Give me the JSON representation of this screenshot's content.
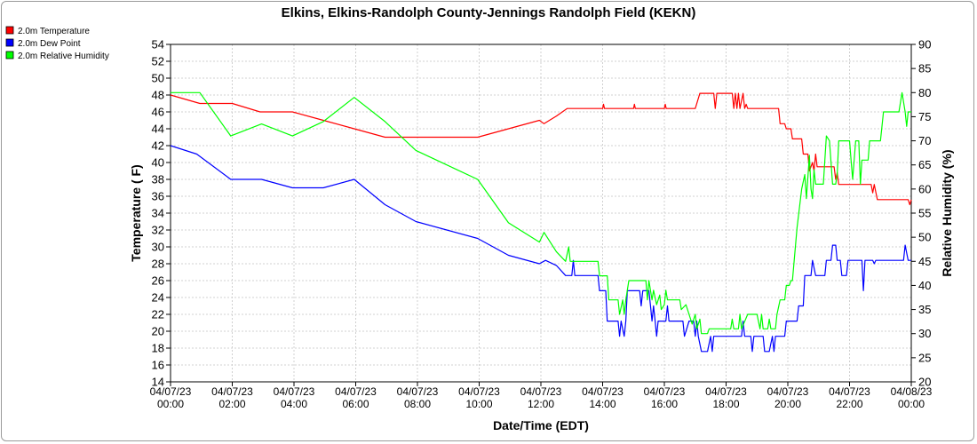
{
  "chart_data": {
    "type": "line",
    "title": "Elkins, Elkins-Randolph County-Jennings Randolph Field (KEKN)",
    "xlabel": "Date/Time (EDT)",
    "ylabel": "Temperature ( F)",
    "y2label": "Relative Humidity (%)",
    "xlim": [
      0,
      24
    ],
    "ylim": [
      14,
      54
    ],
    "y2lim": [
      20,
      90
    ],
    "yticks": [
      14,
      16,
      18,
      20,
      22,
      24,
      26,
      28,
      30,
      32,
      34,
      36,
      38,
      40,
      42,
      44,
      46,
      48,
      50,
      52,
      54
    ],
    "y2ticks": [
      20,
      25,
      30,
      35,
      40,
      45,
      50,
      55,
      60,
      65,
      70,
      75,
      80,
      85,
      90
    ],
    "xticks": [
      {
        "x": 0,
        "date": "04/07/23",
        "time": "00:00"
      },
      {
        "x": 2,
        "date": "04/07/23",
        "time": "02:00"
      },
      {
        "x": 4,
        "date": "04/07/23",
        "time": "04:00"
      },
      {
        "x": 6,
        "date": "04/07/23",
        "time": "06:00"
      },
      {
        "x": 8,
        "date": "04/07/23",
        "time": "08:00"
      },
      {
        "x": 10,
        "date": "04/07/23",
        "time": "10:00"
      },
      {
        "x": 12,
        "date": "04/07/23",
        "time": "12:00"
      },
      {
        "x": 14,
        "date": "04/07/23",
        "time": "14:00"
      },
      {
        "x": 16,
        "date": "04/07/23",
        "time": "16:00"
      },
      {
        "x": 18,
        "date": "04/07/23",
        "time": "18:00"
      },
      {
        "x": 20,
        "date": "04/07/23",
        "time": "20:00"
      },
      {
        "x": 22,
        "date": "04/07/23",
        "time": "22:00"
      },
      {
        "x": 24,
        "date": "04/08/23",
        "time": "00:00"
      }
    ],
    "grid": true,
    "legend_position": "top-left",
    "series": [
      {
        "name": "2.0m Temperature",
        "color": "#ff0000",
        "axis": "left",
        "points": [
          [
            0.0,
            48
          ],
          [
            0.95,
            47
          ],
          [
            2.0,
            47
          ],
          [
            2.9,
            46
          ],
          [
            3.95,
            46
          ],
          [
            4.95,
            45
          ],
          [
            5.95,
            44
          ],
          [
            6.95,
            43
          ],
          [
            8.0,
            43
          ],
          [
            8.95,
            43
          ],
          [
            9.95,
            43
          ],
          [
            10.95,
            44
          ],
          [
            11.95,
            45
          ],
          [
            12.1,
            44.6
          ],
          [
            12.5,
            45.5
          ],
          [
            12.85,
            46.4
          ],
          [
            14.0,
            46.4
          ],
          [
            14.03,
            46.9
          ],
          [
            14.06,
            46.4
          ],
          [
            15.0,
            46.4
          ],
          [
            15.03,
            46.9
          ],
          [
            15.06,
            46.4
          ],
          [
            16.0,
            46.4
          ],
          [
            16.03,
            46.9
          ],
          [
            16.06,
            46.4
          ],
          [
            17.0,
            46.4
          ],
          [
            17.15,
            48.2
          ],
          [
            17.6,
            48.2
          ],
          [
            17.65,
            46.4
          ],
          [
            17.7,
            48.2
          ],
          [
            18.2,
            48.2
          ],
          [
            18.25,
            46.4
          ],
          [
            18.3,
            48.2
          ],
          [
            18.35,
            46.4
          ],
          [
            18.4,
            48.2
          ],
          [
            18.45,
            46.4
          ],
          [
            18.55,
            48.2
          ],
          [
            18.6,
            46.4
          ],
          [
            18.65,
            46.9
          ],
          [
            18.7,
            46.4
          ],
          [
            19.0,
            46.4
          ],
          [
            19.5,
            46.4
          ],
          [
            19.7,
            46.4
          ],
          [
            19.75,
            44.6
          ],
          [
            19.9,
            44.6
          ],
          [
            19.95,
            44
          ],
          [
            20.1,
            44
          ],
          [
            20.15,
            42.8
          ],
          [
            20.45,
            42.8
          ],
          [
            20.5,
            41
          ],
          [
            20.65,
            41
          ],
          [
            20.7,
            39
          ],
          [
            20.8,
            40
          ],
          [
            20.85,
            39
          ],
          [
            20.9,
            41
          ],
          [
            20.95,
            39.5
          ],
          [
            21.5,
            39.5
          ],
          [
            21.55,
            38
          ],
          [
            21.6,
            38.8
          ],
          [
            21.65,
            37.4
          ],
          [
            22.7,
            37.4
          ],
          [
            22.75,
            36.4
          ],
          [
            22.8,
            37.4
          ],
          [
            22.9,
            35.6
          ],
          [
            23.9,
            35.6
          ],
          [
            23.95,
            35
          ],
          [
            24.0,
            35.6
          ]
        ]
      },
      {
        "name": "2.0m Dew Point",
        "color": "#0000ff",
        "axis": "left",
        "points": [
          [
            0.0,
            42
          ],
          [
            0.85,
            41
          ],
          [
            1.95,
            38
          ],
          [
            2.95,
            38
          ],
          [
            3.95,
            37
          ],
          [
            4.95,
            37
          ],
          [
            5.95,
            38
          ],
          [
            6.95,
            35
          ],
          [
            7.95,
            33
          ],
          [
            8.95,
            32
          ],
          [
            9.95,
            31
          ],
          [
            10.95,
            29
          ],
          [
            11.95,
            28
          ],
          [
            12.15,
            28.4
          ],
          [
            12.5,
            27.8
          ],
          [
            12.8,
            26.6
          ],
          [
            13.0,
            26.6
          ],
          [
            13.05,
            28.4
          ],
          [
            13.1,
            26.6
          ],
          [
            13.85,
            26.6
          ],
          [
            13.9,
            24.8
          ],
          [
            14.1,
            24.8
          ],
          [
            14.15,
            21.2
          ],
          [
            14.5,
            21.2
          ],
          [
            14.55,
            19.4
          ],
          [
            14.6,
            21.2
          ],
          [
            14.7,
            19.4
          ],
          [
            14.75,
            21.2
          ],
          [
            14.8,
            24.8
          ],
          [
            15.2,
            24.8
          ],
          [
            15.25,
            23
          ],
          [
            15.3,
            24.8
          ],
          [
            15.5,
            24.8
          ],
          [
            15.55,
            23
          ],
          [
            15.6,
            21.2
          ],
          [
            15.65,
            23
          ],
          [
            15.7,
            21.2
          ],
          [
            15.75,
            19.4
          ],
          [
            15.8,
            21.2
          ],
          [
            16.05,
            21.2
          ],
          [
            16.1,
            23
          ],
          [
            16.15,
            21.2
          ],
          [
            16.6,
            21.2
          ],
          [
            16.65,
            19.4
          ],
          [
            16.8,
            21.2
          ],
          [
            16.95,
            21.2
          ],
          [
            17.0,
            19.4
          ],
          [
            17.05,
            21.2
          ],
          [
            17.1,
            19.4
          ],
          [
            17.2,
            17.6
          ],
          [
            17.4,
            17.6
          ],
          [
            17.5,
            19.4
          ],
          [
            17.55,
            17.6
          ],
          [
            17.6,
            19.4
          ],
          [
            18.5,
            19.4
          ],
          [
            18.55,
            21.2
          ],
          [
            18.6,
            19.4
          ],
          [
            18.8,
            19.4
          ],
          [
            18.85,
            17.6
          ],
          [
            18.9,
            19.4
          ],
          [
            19.2,
            19.4
          ],
          [
            19.25,
            17.6
          ],
          [
            19.4,
            17.6
          ],
          [
            19.5,
            19.4
          ],
          [
            19.55,
            17.6
          ],
          [
            19.6,
            19.4
          ],
          [
            19.9,
            19.4
          ],
          [
            19.95,
            21.2
          ],
          [
            20.3,
            21.2
          ],
          [
            20.35,
            23
          ],
          [
            20.5,
            23
          ],
          [
            20.55,
            26.6
          ],
          [
            20.75,
            26.6
          ],
          [
            20.8,
            28.4
          ],
          [
            20.9,
            26.6
          ],
          [
            21.2,
            26.6
          ],
          [
            21.25,
            28.4
          ],
          [
            21.4,
            28.4
          ],
          [
            21.45,
            30.2
          ],
          [
            21.55,
            30.2
          ],
          [
            21.6,
            28.4
          ],
          [
            21.7,
            28.4
          ],
          [
            21.75,
            26.6
          ],
          [
            21.9,
            26.6
          ],
          [
            21.95,
            28.4
          ],
          [
            22.4,
            28.4
          ],
          [
            22.45,
            24.8
          ],
          [
            22.5,
            28.4
          ],
          [
            22.75,
            28.4
          ],
          [
            22.8,
            28
          ],
          [
            22.85,
            28.4
          ],
          [
            23.75,
            28.4
          ],
          [
            23.8,
            30.2
          ],
          [
            23.9,
            28.4
          ],
          [
            24.0,
            28.4
          ]
        ]
      },
      {
        "name": "2.0m Relative Humidity",
        "color": "#00ff00",
        "axis": "right",
        "points": [
          [
            0.0,
            80
          ],
          [
            0.95,
            80
          ],
          [
            1.95,
            71
          ],
          [
            2.95,
            73.5
          ],
          [
            3.95,
            71
          ],
          [
            4.95,
            74
          ],
          [
            5.95,
            79
          ],
          [
            6.95,
            74
          ],
          [
            7.95,
            68
          ],
          [
            8.95,
            65
          ],
          [
            9.95,
            62
          ],
          [
            10.95,
            53
          ],
          [
            11.95,
            49
          ],
          [
            12.1,
            51
          ],
          [
            12.5,
            47
          ],
          [
            12.8,
            45
          ],
          [
            12.9,
            48
          ],
          [
            12.95,
            45
          ],
          [
            13.85,
            45
          ],
          [
            13.9,
            42
          ],
          [
            14.15,
            42
          ],
          [
            14.2,
            37
          ],
          [
            14.5,
            37
          ],
          [
            14.55,
            34
          ],
          [
            14.65,
            37
          ],
          [
            14.7,
            34
          ],
          [
            14.75,
            37
          ],
          [
            14.85,
            41
          ],
          [
            15.4,
            41
          ],
          [
            15.45,
            37
          ],
          [
            15.5,
            41
          ],
          [
            15.6,
            37
          ],
          [
            15.65,
            39
          ],
          [
            15.75,
            36
          ],
          [
            15.85,
            38
          ],
          [
            15.9,
            35
          ],
          [
            16.0,
            36
          ],
          [
            16.05,
            39
          ],
          [
            16.1,
            37
          ],
          [
            16.5,
            37
          ],
          [
            16.55,
            35
          ],
          [
            16.7,
            36
          ],
          [
            16.8,
            34
          ],
          [
            16.9,
            32
          ],
          [
            17.0,
            34
          ],
          [
            17.05,
            31
          ],
          [
            17.15,
            33
          ],
          [
            17.2,
            30
          ],
          [
            17.4,
            30
          ],
          [
            17.45,
            31
          ],
          [
            18.15,
            31
          ],
          [
            18.2,
            33
          ],
          [
            18.25,
            31
          ],
          [
            18.4,
            31
          ],
          [
            18.45,
            34
          ],
          [
            18.5,
            31
          ],
          [
            18.7,
            34
          ],
          [
            19.0,
            34
          ],
          [
            19.1,
            31
          ],
          [
            19.15,
            34
          ],
          [
            19.2,
            31
          ],
          [
            19.35,
            31
          ],
          [
            19.4,
            33
          ],
          [
            19.45,
            31
          ],
          [
            19.6,
            31
          ],
          [
            19.65,
            34
          ],
          [
            19.75,
            37
          ],
          [
            19.9,
            37
          ],
          [
            19.95,
            40
          ],
          [
            20.05,
            40
          ],
          [
            20.1,
            41
          ],
          [
            20.15,
            41
          ],
          [
            20.3,
            52
          ],
          [
            20.45,
            60
          ],
          [
            20.55,
            63
          ],
          [
            20.6,
            58
          ],
          [
            20.7,
            67
          ],
          [
            20.75,
            60
          ],
          [
            20.8,
            58
          ],
          [
            20.85,
            64
          ],
          [
            20.9,
            61
          ],
          [
            21.15,
            61
          ],
          [
            21.25,
            71
          ],
          [
            21.35,
            70
          ],
          [
            21.45,
            61
          ],
          [
            21.55,
            61
          ],
          [
            21.6,
            63
          ],
          [
            21.65,
            70
          ],
          [
            22.0,
            70
          ],
          [
            22.05,
            66
          ],
          [
            22.1,
            62
          ],
          [
            22.15,
            66
          ],
          [
            22.2,
            70
          ],
          [
            22.3,
            70
          ],
          [
            22.35,
            61
          ],
          [
            22.4,
            66
          ],
          [
            22.6,
            66
          ],
          [
            22.65,
            70
          ],
          [
            23.0,
            70
          ],
          [
            23.1,
            76
          ],
          [
            23.6,
            76
          ],
          [
            23.7,
            80
          ],
          [
            23.8,
            76
          ],
          [
            23.85,
            73
          ],
          [
            23.9,
            76
          ],
          [
            24.0,
            76
          ]
        ]
      }
    ]
  }
}
